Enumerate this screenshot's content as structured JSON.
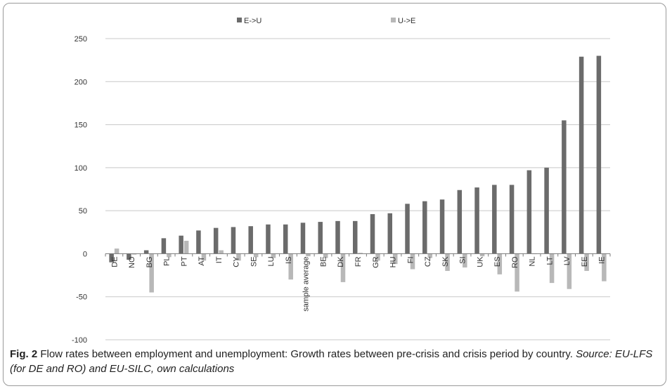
{
  "chart_data": {
    "type": "bar",
    "title": "",
    "xlabel": "",
    "ylabel": "",
    "ylim": [
      -100,
      250
    ],
    "yticks": [
      -100,
      -50,
      0,
      50,
      100,
      150,
      200,
      250
    ],
    "ytick_labels": [
      "-100",
      "-50",
      "0",
      "50",
      "100",
      "150",
      "200",
      "250"
    ],
    "grid": "horizontal",
    "legend_position": "top-center",
    "categories": [
      "DE",
      "NO",
      "BG",
      "PL",
      "PT",
      "AT",
      "IT",
      "CY",
      "SE",
      "LU",
      "IS",
      "sample average",
      "BE",
      "DK",
      "FR",
      "GR",
      "HU",
      "FI",
      "CZ",
      "SK",
      "SI",
      "UK",
      "ES",
      "RO",
      "NL",
      "LT",
      "LV",
      "EE",
      "IE"
    ],
    "series": [
      {
        "name": "E->U",
        "color": "#6b6b6b",
        "values": [
          -10,
          -7,
          4,
          18,
          21,
          27,
          30,
          31,
          32,
          34,
          34,
          36,
          37,
          38,
          38,
          46,
          47,
          58,
          61,
          63,
          74,
          77,
          80,
          80,
          97,
          100,
          155,
          229,
          230
        ]
      },
      {
        "name": "U->E",
        "color": "#b8b8b8",
        "values": [
          6,
          -1,
          -45,
          -4,
          15,
          -8,
          4,
          -8,
          -4,
          -5,
          -30,
          -3,
          -5,
          -33,
          1,
          -8,
          -12,
          -18,
          -5,
          -20,
          -16,
          -3,
          -24,
          -44,
          0,
          -34,
          -41,
          -20,
          -32
        ]
      }
    ]
  },
  "caption": {
    "label": "Fig. 2",
    "text": " Flow rates between employment and unemployment: Growth rates between pre-crisis and crisis period by country. ",
    "source": "Source: EU-LFS (for DE and RO) and EU-SILC, own calculations"
  }
}
